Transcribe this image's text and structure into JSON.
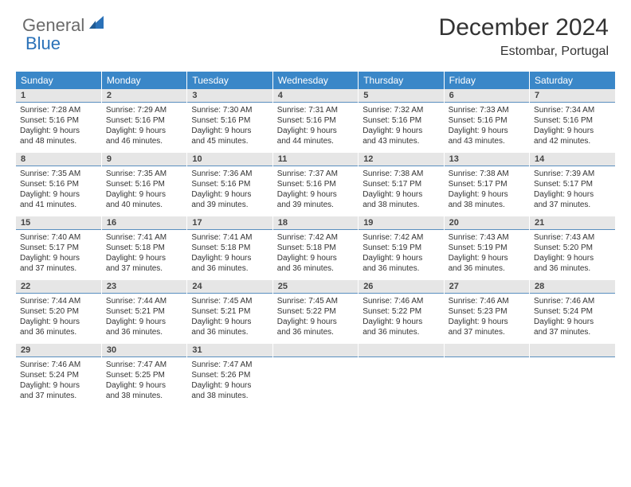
{
  "brand": {
    "text1": "General",
    "text2": "Blue"
  },
  "title": "December 2024",
  "location": "Estombar, Portugal",
  "colors": {
    "header_bg": "#3a87c8",
    "header_text": "#ffffff",
    "daynum_bg": "#e6e6e6",
    "cell_divider": "#5a8fbf",
    "logo_gray": "#6a6a6a",
    "logo_blue": "#2a71b8"
  },
  "weekdays": [
    "Sunday",
    "Monday",
    "Tuesday",
    "Wednesday",
    "Thursday",
    "Friday",
    "Saturday"
  ],
  "weeks": [
    [
      {
        "n": "1",
        "sr": "Sunrise: 7:28 AM",
        "ss": "Sunset: 5:16 PM",
        "d1": "Daylight: 9 hours",
        "d2": "and 48 minutes."
      },
      {
        "n": "2",
        "sr": "Sunrise: 7:29 AM",
        "ss": "Sunset: 5:16 PM",
        "d1": "Daylight: 9 hours",
        "d2": "and 46 minutes."
      },
      {
        "n": "3",
        "sr": "Sunrise: 7:30 AM",
        "ss": "Sunset: 5:16 PM",
        "d1": "Daylight: 9 hours",
        "d2": "and 45 minutes."
      },
      {
        "n": "4",
        "sr": "Sunrise: 7:31 AM",
        "ss": "Sunset: 5:16 PM",
        "d1": "Daylight: 9 hours",
        "d2": "and 44 minutes."
      },
      {
        "n": "5",
        "sr": "Sunrise: 7:32 AM",
        "ss": "Sunset: 5:16 PM",
        "d1": "Daylight: 9 hours",
        "d2": "and 43 minutes."
      },
      {
        "n": "6",
        "sr": "Sunrise: 7:33 AM",
        "ss": "Sunset: 5:16 PM",
        "d1": "Daylight: 9 hours",
        "d2": "and 43 minutes."
      },
      {
        "n": "7",
        "sr": "Sunrise: 7:34 AM",
        "ss": "Sunset: 5:16 PM",
        "d1": "Daylight: 9 hours",
        "d2": "and 42 minutes."
      }
    ],
    [
      {
        "n": "8",
        "sr": "Sunrise: 7:35 AM",
        "ss": "Sunset: 5:16 PM",
        "d1": "Daylight: 9 hours",
        "d2": "and 41 minutes."
      },
      {
        "n": "9",
        "sr": "Sunrise: 7:35 AM",
        "ss": "Sunset: 5:16 PM",
        "d1": "Daylight: 9 hours",
        "d2": "and 40 minutes."
      },
      {
        "n": "10",
        "sr": "Sunrise: 7:36 AM",
        "ss": "Sunset: 5:16 PM",
        "d1": "Daylight: 9 hours",
        "d2": "and 39 minutes."
      },
      {
        "n": "11",
        "sr": "Sunrise: 7:37 AM",
        "ss": "Sunset: 5:16 PM",
        "d1": "Daylight: 9 hours",
        "d2": "and 39 minutes."
      },
      {
        "n": "12",
        "sr": "Sunrise: 7:38 AM",
        "ss": "Sunset: 5:17 PM",
        "d1": "Daylight: 9 hours",
        "d2": "and 38 minutes."
      },
      {
        "n": "13",
        "sr": "Sunrise: 7:38 AM",
        "ss": "Sunset: 5:17 PM",
        "d1": "Daylight: 9 hours",
        "d2": "and 38 minutes."
      },
      {
        "n": "14",
        "sr": "Sunrise: 7:39 AM",
        "ss": "Sunset: 5:17 PM",
        "d1": "Daylight: 9 hours",
        "d2": "and 37 minutes."
      }
    ],
    [
      {
        "n": "15",
        "sr": "Sunrise: 7:40 AM",
        "ss": "Sunset: 5:17 PM",
        "d1": "Daylight: 9 hours",
        "d2": "and 37 minutes."
      },
      {
        "n": "16",
        "sr": "Sunrise: 7:41 AM",
        "ss": "Sunset: 5:18 PM",
        "d1": "Daylight: 9 hours",
        "d2": "and 37 minutes."
      },
      {
        "n": "17",
        "sr": "Sunrise: 7:41 AM",
        "ss": "Sunset: 5:18 PM",
        "d1": "Daylight: 9 hours",
        "d2": "and 36 minutes."
      },
      {
        "n": "18",
        "sr": "Sunrise: 7:42 AM",
        "ss": "Sunset: 5:18 PM",
        "d1": "Daylight: 9 hours",
        "d2": "and 36 minutes."
      },
      {
        "n": "19",
        "sr": "Sunrise: 7:42 AM",
        "ss": "Sunset: 5:19 PM",
        "d1": "Daylight: 9 hours",
        "d2": "and 36 minutes."
      },
      {
        "n": "20",
        "sr": "Sunrise: 7:43 AM",
        "ss": "Sunset: 5:19 PM",
        "d1": "Daylight: 9 hours",
        "d2": "and 36 minutes."
      },
      {
        "n": "21",
        "sr": "Sunrise: 7:43 AM",
        "ss": "Sunset: 5:20 PM",
        "d1": "Daylight: 9 hours",
        "d2": "and 36 minutes."
      }
    ],
    [
      {
        "n": "22",
        "sr": "Sunrise: 7:44 AM",
        "ss": "Sunset: 5:20 PM",
        "d1": "Daylight: 9 hours",
        "d2": "and 36 minutes."
      },
      {
        "n": "23",
        "sr": "Sunrise: 7:44 AM",
        "ss": "Sunset: 5:21 PM",
        "d1": "Daylight: 9 hours",
        "d2": "and 36 minutes."
      },
      {
        "n": "24",
        "sr": "Sunrise: 7:45 AM",
        "ss": "Sunset: 5:21 PM",
        "d1": "Daylight: 9 hours",
        "d2": "and 36 minutes."
      },
      {
        "n": "25",
        "sr": "Sunrise: 7:45 AM",
        "ss": "Sunset: 5:22 PM",
        "d1": "Daylight: 9 hours",
        "d2": "and 36 minutes."
      },
      {
        "n": "26",
        "sr": "Sunrise: 7:46 AM",
        "ss": "Sunset: 5:22 PM",
        "d1": "Daylight: 9 hours",
        "d2": "and 36 minutes."
      },
      {
        "n": "27",
        "sr": "Sunrise: 7:46 AM",
        "ss": "Sunset: 5:23 PM",
        "d1": "Daylight: 9 hours",
        "d2": "and 37 minutes."
      },
      {
        "n": "28",
        "sr": "Sunrise: 7:46 AM",
        "ss": "Sunset: 5:24 PM",
        "d1": "Daylight: 9 hours",
        "d2": "and 37 minutes."
      }
    ],
    [
      {
        "n": "29",
        "sr": "Sunrise: 7:46 AM",
        "ss": "Sunset: 5:24 PM",
        "d1": "Daylight: 9 hours",
        "d2": "and 37 minutes."
      },
      {
        "n": "30",
        "sr": "Sunrise: 7:47 AM",
        "ss": "Sunset: 5:25 PM",
        "d1": "Daylight: 9 hours",
        "d2": "and 38 minutes."
      },
      {
        "n": "31",
        "sr": "Sunrise: 7:47 AM",
        "ss": "Sunset: 5:26 PM",
        "d1": "Daylight: 9 hours",
        "d2": "and 38 minutes."
      },
      {
        "empty": true
      },
      {
        "empty": true
      },
      {
        "empty": true
      },
      {
        "empty": true
      }
    ]
  ]
}
